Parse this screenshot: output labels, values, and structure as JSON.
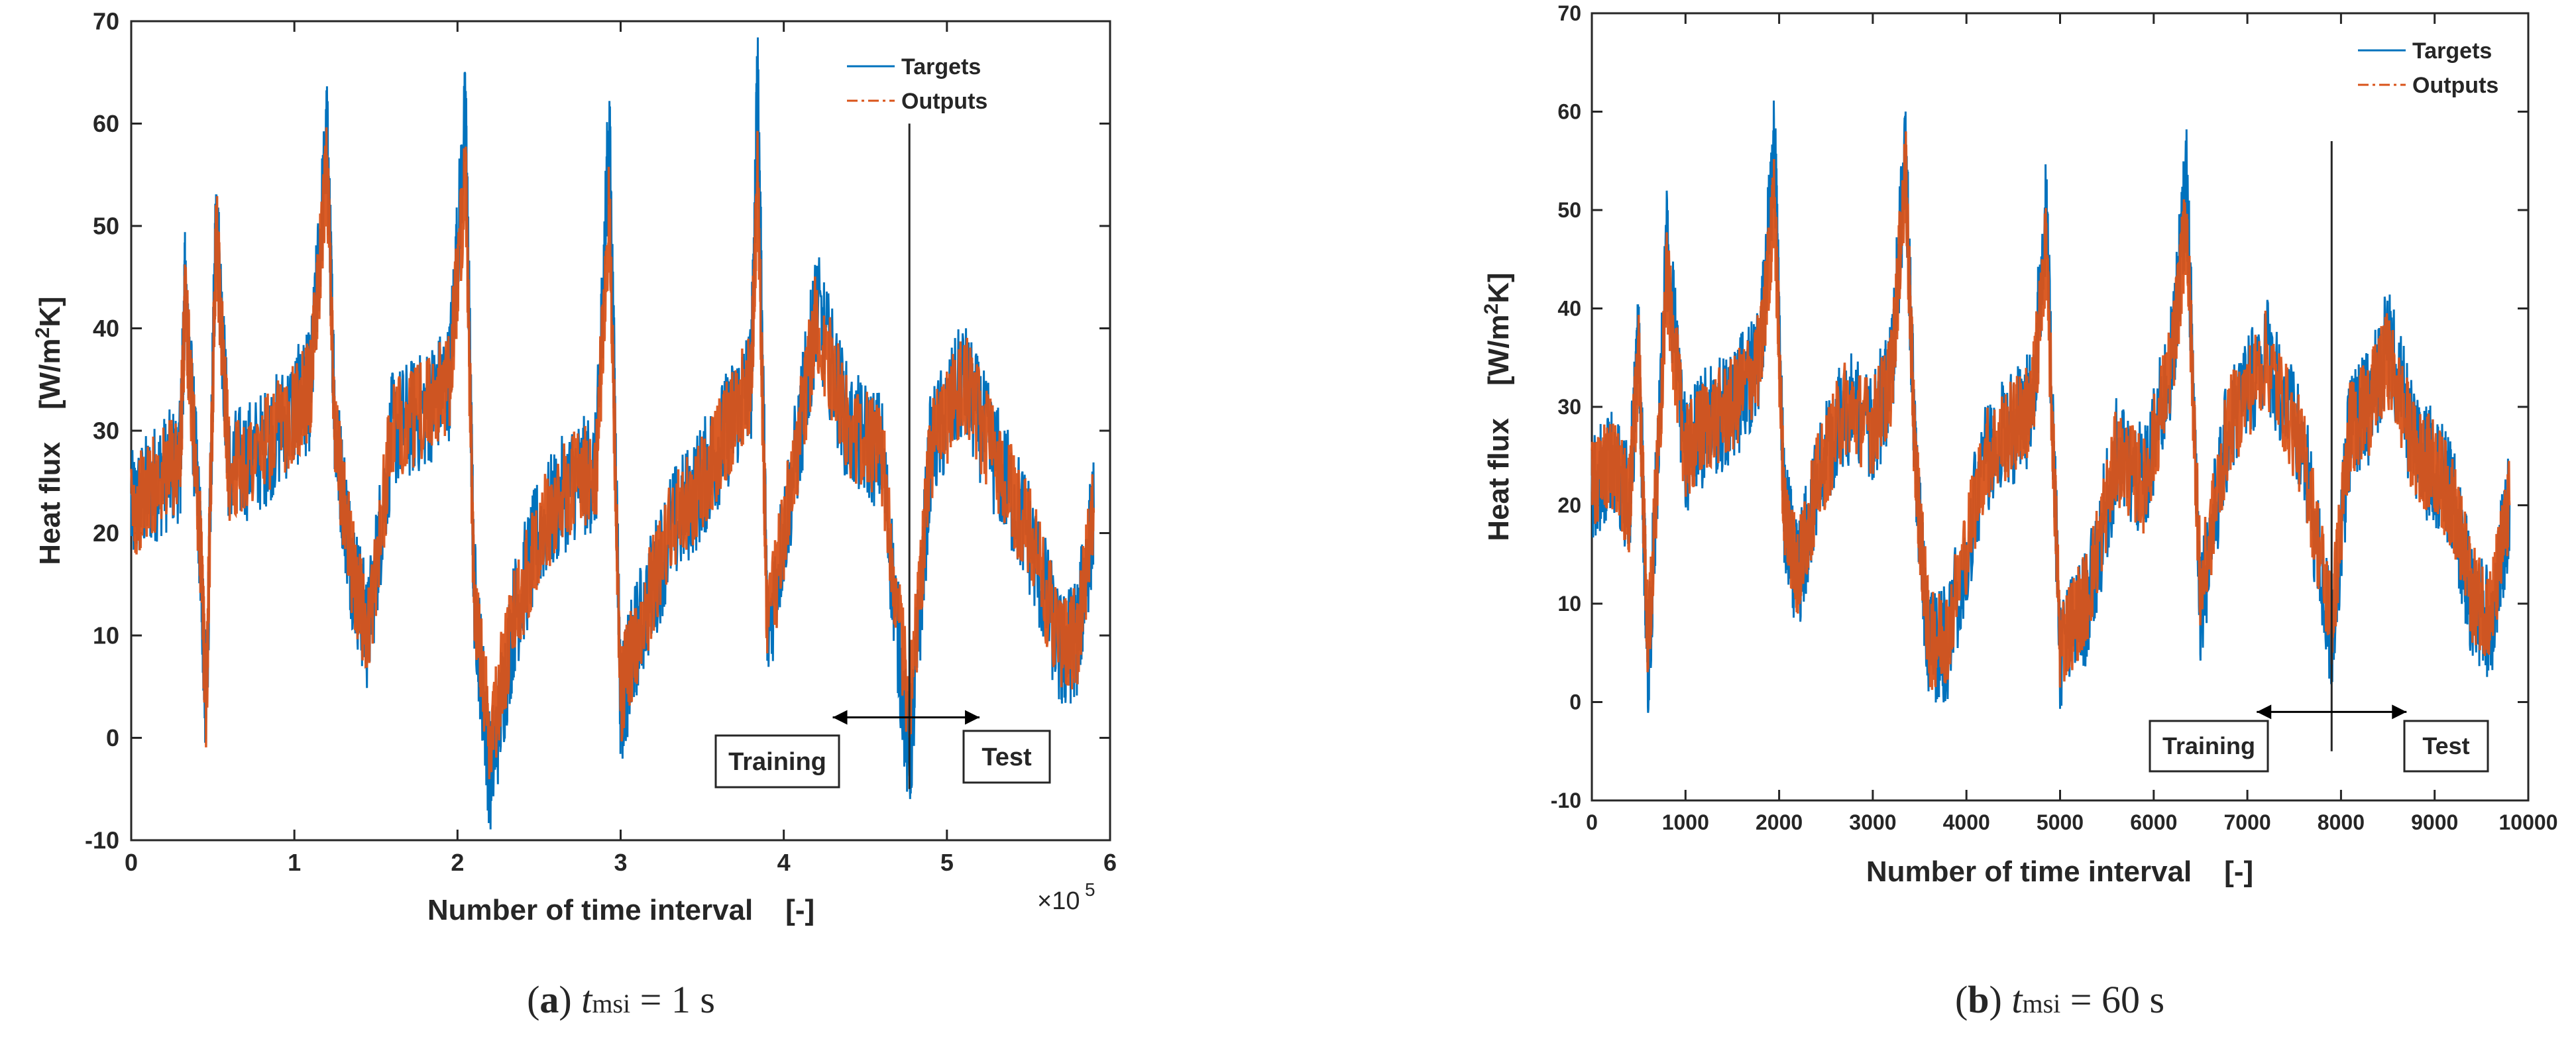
{
  "chart_data": [
    {
      "type": "line",
      "panel": "a",
      "title": "",
      "xlabel": "Number of time interval    [-]",
      "ylabel": "Heat flux    [W/m",
      "ylabel_sup": "2",
      "ylabel_tail": "K]",
      "xlim": [
        0,
        6
      ],
      "ylim": [
        -10,
        70
      ],
      "x_ticks": [
        0,
        1,
        2,
        3,
        4,
        5,
        6
      ],
      "x_tick_labels": [
        "0",
        "1",
        "2",
        "3",
        "4",
        "5",
        "6"
      ],
      "y_ticks": [
        -10,
        0,
        10,
        20,
        30,
        40,
        50,
        60,
        70
      ],
      "y_tick_labels": [
        "-10",
        "0",
        "10",
        "20",
        "30",
        "40",
        "50",
        "60",
        "70"
      ],
      "x_multiplier": "×10",
      "x_multiplier_exp": "5",
      "legend": [
        "Targets",
        "Outputs"
      ],
      "legend_position": "top-right",
      "split_at": 4.77,
      "split_top": 60,
      "arrow_from": 4.3,
      "arrow_to": 5.2,
      "arrow_y": 2,
      "training_label": "Training",
      "test_label": "Test",
      "series": [
        {
          "name": "Targets",
          "color": "#0072BD",
          "x": [
            0,
            0.15,
            0.3,
            0.33,
            0.42,
            0.46,
            0.52,
            0.6,
            0.8,
            1.0,
            1.1,
            1.2,
            1.25,
            1.35,
            1.45,
            1.6,
            1.8,
            1.95,
            2.05,
            2.1,
            2.2,
            2.35,
            2.5,
            2.7,
            2.85,
            2.93,
            3.0,
            3.1,
            3.3,
            3.5,
            3.65,
            3.8,
            3.84,
            3.9,
            4.1,
            4.2,
            4.4,
            4.6,
            4.77,
            4.9,
            5.1,
            5.3,
            5.5,
            5.7,
            5.8,
            5.9
          ],
          "y": [
            22,
            25,
            27,
            44,
            20,
            2,
            52,
            26,
            28,
            32,
            34,
            59,
            30,
            17,
            10,
            30,
            32,
            35,
            61,
            15,
            -4,
            12,
            20,
            25,
            26,
            60,
            3,
            10,
            20,
            25,
            30,
            35,
            64,
            10,
            30,
            42,
            30,
            28,
            -3,
            28,
            35,
            27,
            20,
            8,
            10,
            22
          ]
        },
        {
          "name": "Outputs",
          "color": "#D95319",
          "x": [
            0,
            0.15,
            0.3,
            0.33,
            0.42,
            0.46,
            0.52,
            0.6,
            0.8,
            1.0,
            1.1,
            1.2,
            1.25,
            1.35,
            1.45,
            1.6,
            1.8,
            1.95,
            2.05,
            2.1,
            2.2,
            2.35,
            2.5,
            2.7,
            2.85,
            2.93,
            3.0,
            3.1,
            3.3,
            3.5,
            3.65,
            3.8,
            3.84,
            3.9,
            4.1,
            4.2,
            4.4,
            4.6,
            4.77,
            4.9,
            5.1,
            5.3,
            5.5,
            5.7,
            5.8,
            5.9
          ],
          "y": [
            22,
            25,
            27,
            43,
            20,
            3,
            50,
            26,
            28,
            32,
            34,
            56,
            30,
            17,
            10,
            30,
            32,
            35,
            55,
            15,
            0,
            12,
            20,
            25,
            26,
            52,
            4,
            10,
            20,
            25,
            30,
            35,
            55,
            10,
            30,
            41,
            30,
            28,
            2,
            28,
            35,
            27,
            20,
            9,
            10,
            22
          ]
        }
      ],
      "caption_letter": "a",
      "caption_t": "t",
      "caption_sub": "msi",
      "caption_value": " = 1 s"
    },
    {
      "type": "line",
      "panel": "b",
      "title": "",
      "xlabel": "Number of time interval    [-]",
      "ylabel": "Heat flux    [W/m",
      "ylabel_sup": "2",
      "ylabel_tail": "K]",
      "xlim": [
        0,
        10000
      ],
      "ylim": [
        -10,
        70
      ],
      "x_ticks": [
        0,
        1000,
        2000,
        3000,
        4000,
        5000,
        6000,
        7000,
        8000,
        9000,
        10000
      ],
      "x_tick_labels": [
        "0",
        "1000",
        "2000",
        "3000",
        "4000",
        "5000",
        "6000",
        "7000",
        "8000",
        "9000",
        "10000"
      ],
      "y_ticks": [
        -10,
        0,
        10,
        20,
        30,
        40,
        50,
        60,
        70
      ],
      "y_tick_labels": [
        "-10",
        "0",
        "10",
        "20",
        "30",
        "40",
        "50",
        "60",
        "70"
      ],
      "legend": [
        "Targets",
        "Outputs"
      ],
      "legend_position": "top-right",
      "split_at": 7900,
      "split_top": 57,
      "arrow_from": 7100,
      "arrow_to": 8700,
      "arrow_y": -1,
      "training_label": "Training",
      "test_label": "Test",
      "series": [
        {
          "name": "Targets",
          "color": "#0072BD",
          "x": [
            0,
            200,
            400,
            500,
            600,
            800,
            1000,
            1200,
            1500,
            1800,
            1950,
            2050,
            2200,
            2400,
            2700,
            3000,
            3200,
            3350,
            3450,
            3600,
            3800,
            4200,
            4500,
            4700,
            4850,
            5000,
            5300,
            5600,
            5900,
            6200,
            6350,
            6500,
            6800,
            7200,
            7600,
            7900,
            8100,
            8300,
            8500,
            8800,
            9000,
            9200,
            9400,
            9600,
            9800
          ],
          "y": [
            22,
            25,
            20,
            37,
            3,
            46,
            25,
            28,
            30,
            35,
            57,
            20,
            12,
            22,
            30,
            28,
            33,
            56,
            25,
            5,
            6,
            25,
            28,
            30,
            50,
            5,
            10,
            25,
            22,
            35,
            53,
            10,
            28,
            36,
            25,
            6,
            28,
            30,
            37,
            25,
            24,
            20,
            10,
            8,
            20
          ]
        },
        {
          "name": "Outputs",
          "color": "#D95319",
          "x": [
            0,
            200,
            400,
            500,
            600,
            800,
            1000,
            1200,
            1500,
            1800,
            1950,
            2050,
            2200,
            2400,
            2700,
            3000,
            3200,
            3350,
            3450,
            3600,
            3800,
            4200,
            4500,
            4700,
            4850,
            5000,
            5300,
            5600,
            5900,
            6200,
            6350,
            6500,
            6800,
            7200,
            7600,
            7900,
            8100,
            8300,
            8500,
            8800,
            9000,
            9200,
            9400,
            9600,
            9800
          ],
          "y": [
            22,
            25,
            20,
            35,
            5,
            43,
            25,
            28,
            30,
            35,
            51,
            20,
            13,
            22,
            30,
            28,
            33,
            54,
            25,
            6,
            7,
            25,
            28,
            30,
            46,
            6,
            11,
            25,
            22,
            35,
            49,
            11,
            28,
            35,
            25,
            8,
            28,
            30,
            35,
            25,
            24,
            20,
            11,
            9,
            20
          ]
        }
      ],
      "caption_letter": "b",
      "caption_t": "t",
      "caption_sub": "msi",
      "caption_value": " = 60 s"
    }
  ]
}
